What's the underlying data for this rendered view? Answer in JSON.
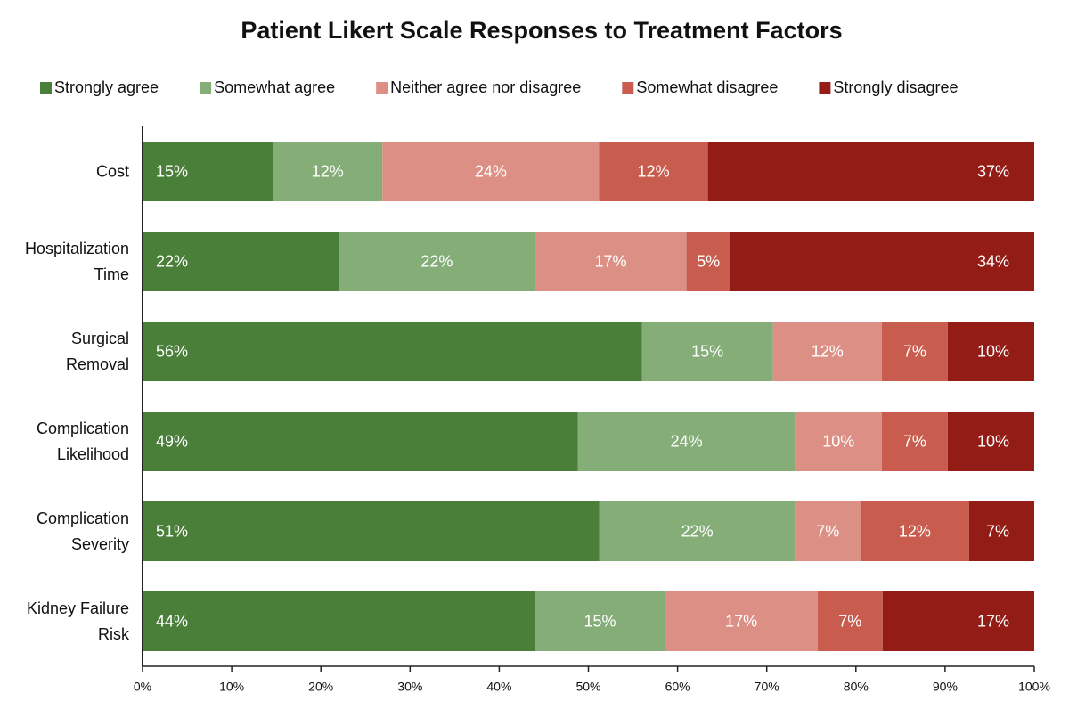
{
  "chart_data": {
    "type": "stacked-bar-horizontal",
    "title": "Patient Likert Scale Responses to Treatment Factors",
    "categories": [
      "Cost",
      "Hospitalization Time",
      "Surgical Removal",
      "Complication Likelihood",
      "Complication Severity",
      "Kidney Failure Risk"
    ],
    "series": [
      {
        "name": "Strongly agree",
        "color": "#4a7f3a",
        "values": [
          14.6,
          22,
          56,
          48.8,
          51.2,
          44
        ],
        "value_labels": [
          "15%",
          "22%",
          "56%",
          "49%",
          "51%",
          "44%"
        ]
      },
      {
        "name": "Somewhat agree",
        "color": "#84ad78",
        "values": [
          12.3,
          22,
          14.7,
          24.4,
          22,
          14.6
        ],
        "value_labels": [
          "12%",
          "22%",
          "15%",
          "24%",
          "22%",
          "15%"
        ]
      },
      {
        "name": "Neither agree nor disagree",
        "color": "#dc8f85",
        "values": [
          24.3,
          17,
          12.2,
          9.7,
          7.3,
          17.1
        ],
        "value_labels": [
          "24%",
          "17%",
          "12%",
          "10%",
          "7%",
          "17%"
        ]
      },
      {
        "name": "Somewhat disagree",
        "color": "#c85c4e",
        "values": [
          12.2,
          4.9,
          7.4,
          7.4,
          12.2,
          7.3
        ],
        "value_labels": [
          "12%",
          "5%",
          "7%",
          "7%",
          "12%",
          "7%"
        ]
      },
      {
        "name": "Strongly disagree",
        "color": "#941c16",
        "values": [
          36.6,
          34.1,
          9.7,
          9.7,
          7.3,
          17
        ],
        "value_labels": [
          "37%",
          "34%",
          "10%",
          "10%",
          "7%",
          "17%"
        ]
      }
    ],
    "xlim": [
      0,
      100
    ],
    "xticks": [
      {
        "value": 0,
        "label": "0%"
      },
      {
        "value": 10,
        "label": "10%"
      },
      {
        "value": 20,
        "label": "20%"
      },
      {
        "value": 30,
        "label": "30%"
      },
      {
        "value": 40,
        "label": "40%"
      },
      {
        "value": 50,
        "label": "50%"
      },
      {
        "value": 60,
        "label": "60%"
      },
      {
        "value": 70,
        "label": "70%"
      },
      {
        "value": 80,
        "label": "80%"
      },
      {
        "value": 90,
        "label": "90%"
      },
      {
        "value": 100,
        "label": "100%"
      }
    ],
    "legend": "top"
  }
}
